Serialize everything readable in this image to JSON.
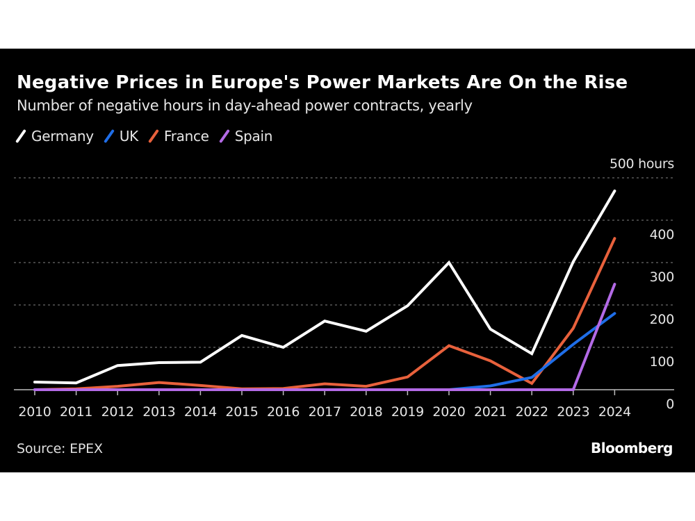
{
  "chart_data": {
    "type": "line",
    "title": "Negative Prices in Europe's Power Markets Are On the Rise",
    "subtitle": "Number of negative hours in day-ahead power contracts, yearly",
    "xlabel": "",
    "ylabel": "hours",
    "x": [
      "2010",
      "2011",
      "2012",
      "2013",
      "2014",
      "2015",
      "2016",
      "2017",
      "2018",
      "2019",
      "2020",
      "2021",
      "2022",
      "2023",
      "2024"
    ],
    "ylim": [
      0,
      500
    ],
    "y_ticks": [
      0,
      100,
      200,
      300,
      400,
      500
    ],
    "y_tick_labels": [
      "0",
      "100",
      "200",
      "300",
      "400",
      "500 hours"
    ],
    "grid": true,
    "legend_position": "top-left",
    "series": [
      {
        "name": "Germany",
        "color": "#ffffff",
        "values": [
          18,
          16,
          57,
          64,
          65,
          128,
          100,
          162,
          138,
          198,
          300,
          143,
          85,
          302,
          469
        ]
      },
      {
        "name": "UK",
        "color": "#1f6ee8",
        "values": [
          0,
          0,
          0,
          0,
          0,
          0,
          0,
          0,
          0,
          0,
          0,
          9,
          29,
          107,
          180
        ]
      },
      {
        "name": "France",
        "color": "#e8613c",
        "values": [
          0,
          2,
          8,
          17,
          10,
          2,
          3,
          14,
          8,
          30,
          104,
          68,
          15,
          145,
          357
        ]
      },
      {
        "name": "Spain",
        "color": "#b36ae6",
        "values": [
          0,
          0,
          0,
          0,
          0,
          0,
          0,
          0,
          0,
          0,
          0,
          0,
          0,
          0,
          249
        ]
      }
    ],
    "source": "Source: EPEX",
    "brand": "Bloomberg"
  }
}
